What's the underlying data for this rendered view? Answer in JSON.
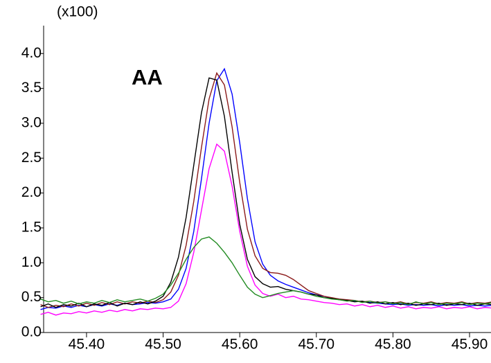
{
  "chart_data": {
    "type": "line",
    "y_label": "(x100)",
    "annotation": "AA",
    "x": [
      45.34,
      45.35,
      45.36,
      45.37,
      45.38,
      45.39,
      45.4,
      45.41,
      45.42,
      45.43,
      45.44,
      45.45,
      45.46,
      45.47,
      45.48,
      45.49,
      45.5,
      45.51,
      45.52,
      45.53,
      45.54,
      45.55,
      45.56,
      45.57,
      45.58,
      45.59,
      45.6,
      45.61,
      45.62,
      45.63,
      45.64,
      45.65,
      45.66,
      45.67,
      45.68,
      45.69,
      45.7,
      45.71,
      45.72,
      45.73,
      45.74,
      45.75,
      45.76,
      45.77,
      45.78,
      45.79,
      45.8,
      45.81,
      45.82,
      45.83,
      45.84,
      45.85,
      45.86,
      45.87,
      45.88,
      45.89,
      45.9,
      45.91,
      45.92,
      45.93
    ],
    "series": [
      {
        "color": "#0000ff",
        "values": [
          0.33,
          0.36,
          0.35,
          0.38,
          0.36,
          0.39,
          0.37,
          0.4,
          0.38,
          0.41,
          0.39,
          0.42,
          0.4,
          0.41,
          0.43,
          0.42,
          0.44,
          0.48,
          0.62,
          0.92,
          1.45,
          2.2,
          3.0,
          3.61,
          3.78,
          3.42,
          2.72,
          1.92,
          1.3,
          0.98,
          0.82,
          0.74,
          0.69,
          0.65,
          0.61,
          0.57,
          0.54,
          0.52,
          0.49,
          0.48,
          0.46,
          0.45,
          0.44,
          0.43,
          0.42,
          0.41,
          0.4,
          0.41,
          0.39,
          0.4,
          0.39,
          0.4,
          0.38,
          0.4,
          0.39,
          0.4,
          0.38,
          0.39,
          0.38,
          0.39
        ]
      },
      {
        "color": "#8b1a1a",
        "values": [
          0.4,
          0.36,
          0.39,
          0.37,
          0.41,
          0.38,
          0.42,
          0.39,
          0.43,
          0.4,
          0.44,
          0.41,
          0.44,
          0.42,
          0.45,
          0.43,
          0.47,
          0.58,
          0.82,
          1.25,
          1.88,
          2.65,
          3.35,
          3.72,
          3.55,
          2.95,
          2.15,
          1.48,
          1.1,
          0.92,
          0.86,
          0.85,
          0.82,
          0.76,
          0.68,
          0.6,
          0.56,
          0.52,
          0.5,
          0.48,
          0.47,
          0.46,
          0.44,
          0.45,
          0.43,
          0.44,
          0.42,
          0.44,
          0.41,
          0.43,
          0.42,
          0.44,
          0.41,
          0.43,
          0.42,
          0.44,
          0.41,
          0.43,
          0.42,
          0.44
        ]
      },
      {
        "color": "#000000",
        "values": [
          0.37,
          0.41,
          0.36,
          0.4,
          0.38,
          0.42,
          0.37,
          0.41,
          0.39,
          0.43,
          0.38,
          0.42,
          0.4,
          0.44,
          0.41,
          0.45,
          0.52,
          0.72,
          1.08,
          1.65,
          2.4,
          3.15,
          3.65,
          3.62,
          3.1,
          2.3,
          1.55,
          1.05,
          0.8,
          0.7,
          0.65,
          0.66,
          0.62,
          0.6,
          0.58,
          0.55,
          0.54,
          0.5,
          0.49,
          0.47,
          0.46,
          0.44,
          0.45,
          0.42,
          0.44,
          0.41,
          0.43,
          0.4,
          0.42,
          0.39,
          0.41,
          0.4,
          0.42,
          0.39,
          0.41,
          0.4,
          0.42,
          0.39,
          0.41,
          0.4
        ]
      },
      {
        "color": "#ff00ff",
        "values": [
          0.26,
          0.29,
          0.25,
          0.28,
          0.27,
          0.3,
          0.28,
          0.31,
          0.29,
          0.32,
          0.3,
          0.33,
          0.31,
          0.34,
          0.33,
          0.35,
          0.34,
          0.36,
          0.45,
          0.7,
          1.15,
          1.75,
          2.35,
          2.7,
          2.6,
          2.1,
          1.45,
          0.95,
          0.68,
          0.56,
          0.52,
          0.55,
          0.5,
          0.52,
          0.48,
          0.47,
          0.45,
          0.43,
          0.42,
          0.4,
          0.41,
          0.38,
          0.4,
          0.37,
          0.39,
          0.36,
          0.38,
          0.35,
          0.37,
          0.34,
          0.36,
          0.35,
          0.37,
          0.34,
          0.36,
          0.35,
          0.37,
          0.34,
          0.36,
          0.35
        ]
      },
      {
        "color": "#228b22",
        "values": [
          0.48,
          0.44,
          0.46,
          0.42,
          0.45,
          0.41,
          0.44,
          0.42,
          0.46,
          0.43,
          0.47,
          0.44,
          0.46,
          0.48,
          0.45,
          0.49,
          0.55,
          0.68,
          0.85,
          1.05,
          1.22,
          1.34,
          1.37,
          1.28,
          1.15,
          1.0,
          0.82,
          0.65,
          0.55,
          0.5,
          0.53,
          0.56,
          0.58,
          0.6,
          0.58,
          0.55,
          0.52,
          0.5,
          0.48,
          0.47,
          0.45,
          0.46,
          0.43,
          0.45,
          0.42,
          0.44,
          0.41,
          0.43,
          0.4,
          0.44,
          0.41,
          0.43,
          0.4,
          0.42,
          0.41,
          0.43,
          0.4,
          0.42,
          0.41,
          0.43
        ]
      }
    ],
    "xlim": [
      45.344,
      45.928
    ],
    "xticks": [
      {
        "value": 45.4,
        "label": "45.40"
      },
      {
        "value": 45.5,
        "label": "45.50"
      },
      {
        "value": 45.6,
        "label": "45.60"
      },
      {
        "value": 45.7,
        "label": "45.70"
      },
      {
        "value": 45.8,
        "label": "45.80"
      },
      {
        "value": 45.9,
        "label": "45.90"
      }
    ],
    "ylim": [
      0,
      4.4
    ],
    "yticks": [
      {
        "value": 0,
        "label": "0.0"
      },
      {
        "value": 0.5,
        "label": "0.5"
      },
      {
        "value": 1,
        "label": "1.0"
      },
      {
        "value": 1.5,
        "label": "1.5"
      },
      {
        "value": 2,
        "label": "2.0"
      },
      {
        "value": 2.5,
        "label": "2.5"
      },
      {
        "value": 3,
        "label": "3.0"
      },
      {
        "value": 3.5,
        "label": "3.5"
      },
      {
        "value": 4,
        "label": "4.0"
      }
    ]
  }
}
